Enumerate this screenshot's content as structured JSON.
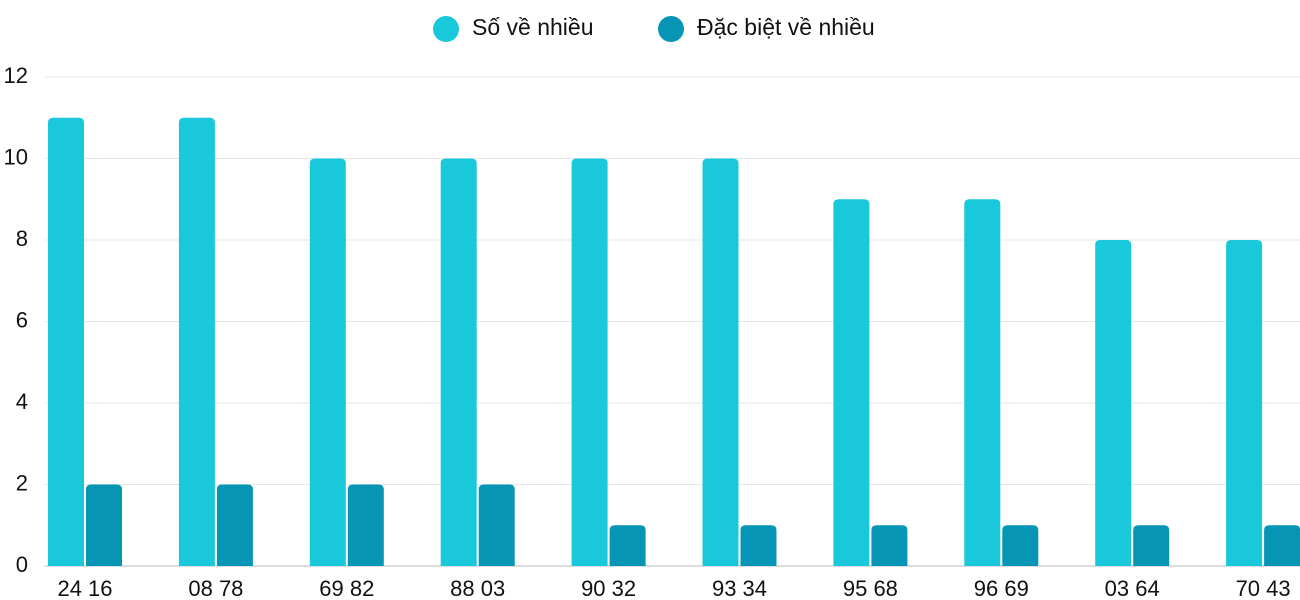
{
  "chart_data": {
    "type": "bar",
    "categories": [
      "24 16",
      "08 78",
      "69 82",
      "88 03",
      "90 32",
      "93 34",
      "95 68",
      "96 69",
      "03 64",
      "70 43"
    ],
    "series": [
      {
        "name": "Số về nhiều",
        "color": "#1ac8db",
        "values": [
          11,
          11,
          10,
          10,
          10,
          10,
          9,
          9,
          8,
          8
        ]
      },
      {
        "name": "Đặc biệt về nhiều",
        "color": "#0795b5",
        "values": [
          2,
          2,
          2,
          2,
          1,
          1,
          1,
          1,
          1,
          1
        ]
      }
    ],
    "ylim": [
      0,
      12
    ],
    "yticks": [
      0,
      2,
      4,
      6,
      8,
      10,
      12
    ],
    "grid": true,
    "legend": "top"
  }
}
